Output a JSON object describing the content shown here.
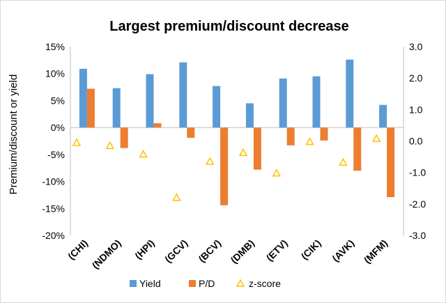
{
  "chart_data": {
    "type": "bar",
    "title": "Largest premium/discount decrease",
    "ylabel": "Premium/discount or yield",
    "xlabel": "",
    "categories": [
      "(CHI)",
      "(NDMO)",
      "(HPI)",
      "(GCV)",
      "(BCV)",
      "(DMB)",
      "(ETV)",
      "(CIK)",
      "(AVK)",
      "(MFM)"
    ],
    "y_ticks": [
      "15%",
      "10%",
      "5%",
      "0%",
      "-5%",
      "-10%",
      "-15%",
      "-20%"
    ],
    "y2_ticks": [
      "3.0",
      "2.0",
      "1.0",
      "0.0",
      "-1.0",
      "-2.0",
      "-3.0"
    ],
    "ylim": [
      -20,
      15
    ],
    "y2lim": [
      -3,
      3
    ],
    "grid": false,
    "legend_position": "bottom",
    "series": [
      {
        "name": "Yield",
        "type": "bar",
        "axis": "left",
        "color": "#5b9bd5",
        "values": [
          10.9,
          7.3,
          9.9,
          12.1,
          7.7,
          4.5,
          9.1,
          9.5,
          12.6,
          4.2
        ]
      },
      {
        "name": "P/D",
        "type": "bar",
        "axis": "left",
        "color": "#ed7d31",
        "values": [
          7.2,
          -3.8,
          0.8,
          -1.9,
          -14.4,
          -7.8,
          -3.3,
          -2.4,
          -8.0,
          -12.9
        ]
      },
      {
        "name": "z-score",
        "type": "scatter",
        "axis": "right",
        "color": "#ffc000",
        "marker": "triangle-open",
        "values": [
          -0.05,
          -0.15,
          -0.42,
          -1.8,
          -0.65,
          -0.37,
          -1.02,
          -0.02,
          -0.68,
          0.08
        ]
      }
    ]
  }
}
